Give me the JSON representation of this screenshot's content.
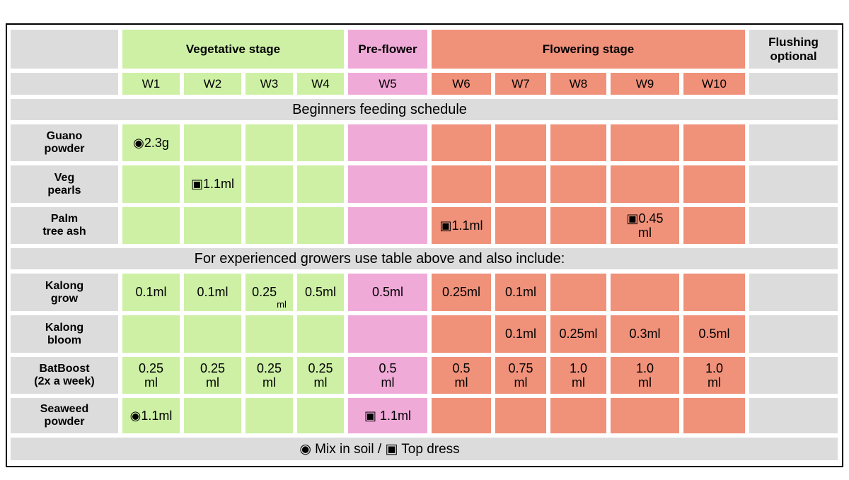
{
  "colors": {
    "vegetative": "#cdf0a5",
    "preflower": "#f0aad8",
    "flowering": "#f0917a",
    "neutral": "#dcdcdc",
    "background": "#ffffff",
    "border": "#000000"
  },
  "header": {
    "stages": [
      {
        "label": "Vegetative stage",
        "color": "vegetative",
        "weeks": [
          "W1",
          "W2",
          "W3",
          "W4"
        ]
      },
      {
        "label": "Pre-flower",
        "color": "preflower",
        "weeks": [
          "W5"
        ]
      },
      {
        "label": "Flowering stage",
        "color": "flowering",
        "weeks": [
          "W6",
          "W7",
          "W8",
          "W9",
          "W10"
        ]
      }
    ],
    "flushing": "Flushing\noptional"
  },
  "sections": [
    {
      "banner": "Beginners feeding schedule",
      "rows": [
        {
          "label": "Guano\npowder",
          "values": [
            "◉2.3g",
            "",
            "",
            "",
            "",
            "",
            "",
            "",
            "",
            ""
          ]
        },
        {
          "label": "Veg\npearls",
          "values": [
            "",
            "▣1.1ml",
            "",
            "",
            "",
            "",
            "",
            "",
            "",
            ""
          ]
        },
        {
          "label": "Palm\ntree ash",
          "values": [
            "",
            "",
            "",
            "",
            "",
            "▣1.1ml",
            "",
            "",
            "▣0.45\nml",
            ""
          ]
        }
      ]
    },
    {
      "banner": "For experienced growers use table above and also include:",
      "rows": [
        {
          "label": "Kalong\ngrow",
          "values": [
            "0.1ml",
            "0.1ml",
            {
              "text": "0.25ml",
              "small_unit": true
            },
            "0.5ml",
            "0.5ml",
            "0.25ml",
            "0.1ml",
            "",
            "",
            ""
          ]
        },
        {
          "label": "Kalong\nbloom",
          "values": [
            "",
            "",
            "",
            "",
            "",
            "",
            "0.1ml",
            "0.25ml",
            "0.3ml",
            "0.5ml"
          ]
        },
        {
          "label": "BatBoost\n(2x a week)",
          "values": [
            "0.25\nml",
            "0.25\nml",
            "0.25\nml",
            "0.25\nml",
            "0.5\nml",
            "0.5\nml",
            "0.75\nml",
            "1.0\nml",
            "1.0\nml",
            "1.0\nml"
          ]
        },
        {
          "label": "Seaweed\npowder",
          "values": [
            "◉1.1ml",
            "",
            "",
            "",
            "▣ 1.1ml",
            "",
            "",
            "",
            "",
            ""
          ]
        }
      ]
    }
  ],
  "legend": "◉ Mix in soil / ▣ Top dress",
  "symbols": {
    "mix_in_soil": "◉",
    "top_dress": "▣"
  }
}
